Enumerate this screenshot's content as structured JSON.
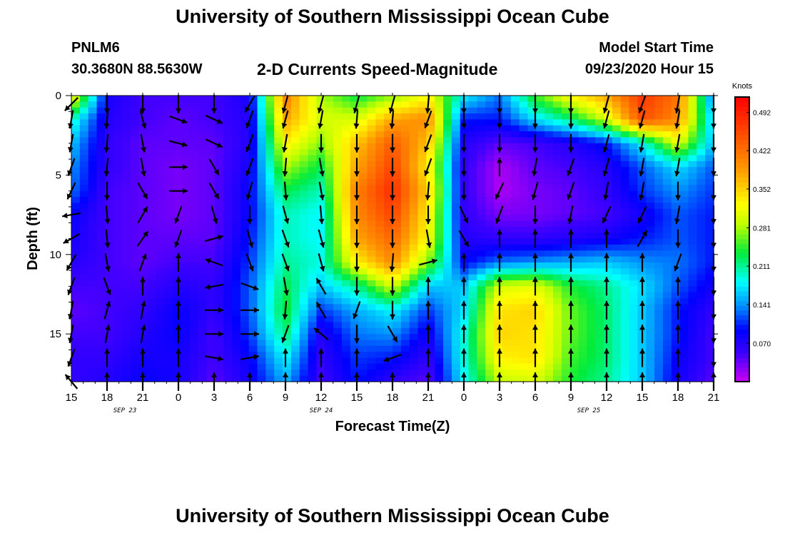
{
  "header": {
    "title": "University of Southern Mississippi Ocean Cube",
    "station_id": "PNLM6",
    "station_coords": "30.3680N 88.5630W",
    "chart_title": "2-D Currents Speed-Magnitude",
    "model_start_label": "Model Start Time",
    "model_start_value": "09/23/2020 Hour 15"
  },
  "footer": {
    "title": "University of Southern Mississippi Ocean Cube"
  },
  "chart_data": {
    "type": "heatmap",
    "title": "2-D Currents Speed-Magnitude",
    "xlabel": "Forecast Time(Z)",
    "ylabel": "Depth (ft)",
    "colorbar_label": "Knots",
    "colorbar_ticks": [
      0.492,
      0.422,
      0.352,
      0.281,
      0.211,
      0.141,
      0.07
    ],
    "colorbar_range": [
      0.0,
      0.52
    ],
    "x_ticks": [
      "15",
      "18",
      "21",
      "0",
      "3",
      "6",
      "9",
      "12",
      "15",
      "18",
      "21",
      "0",
      "3",
      "6",
      "9",
      "12",
      "15",
      "18",
      "21"
    ],
    "date_labels": [
      {
        "text": "SEP 23",
        "hours_from_start": 4.5
      },
      {
        "text": "SEP 24",
        "hours_from_start": 21
      },
      {
        "text": "SEP 25",
        "hours_from_start": 43.5
      }
    ],
    "x_range_hours": [
      0,
      54
    ],
    "y_ticks": [
      0,
      5,
      10,
      15
    ],
    "ylim": [
      0,
      18
    ],
    "grid": false,
    "depths_ft": [
      0,
      1.5,
      3,
      4.5,
      6,
      7.5,
      9,
      10.5,
      12,
      13.5,
      15,
      16.5,
      18
    ],
    "times_hours": [
      0,
      3,
      6,
      9,
      12,
      15,
      18,
      21,
      24,
      27,
      30,
      33,
      36,
      39,
      42,
      45,
      48,
      51,
      54
    ],
    "speed_knots": [
      [
        0.34,
        0.08,
        0.05,
        0.05,
        0.05,
        0.08,
        0.41,
        0.28,
        0.23,
        0.27,
        0.32,
        0.18,
        0.13,
        0.25,
        0.33,
        0.38,
        0.47,
        0.42,
        0.12
      ],
      [
        0.2,
        0.07,
        0.05,
        0.04,
        0.05,
        0.07,
        0.38,
        0.3,
        0.3,
        0.38,
        0.4,
        0.1,
        0.1,
        0.17,
        0.22,
        0.3,
        0.45,
        0.4,
        0.15
      ],
      [
        0.16,
        0.06,
        0.04,
        0.04,
        0.04,
        0.07,
        0.33,
        0.27,
        0.36,
        0.44,
        0.36,
        0.07,
        0.04,
        0.05,
        0.07,
        0.1,
        0.18,
        0.31,
        0.15
      ],
      [
        0.14,
        0.06,
        0.04,
        0.03,
        0.04,
        0.08,
        0.28,
        0.23,
        0.38,
        0.46,
        0.33,
        0.06,
        0.01,
        0.04,
        0.05,
        0.07,
        0.12,
        0.17,
        0.12
      ],
      [
        0.13,
        0.05,
        0.04,
        0.03,
        0.04,
        0.09,
        0.23,
        0.2,
        0.41,
        0.48,
        0.35,
        0.06,
        0.01,
        0.03,
        0.04,
        0.06,
        0.11,
        0.14,
        0.11
      ],
      [
        0.09,
        0.05,
        0.04,
        0.03,
        0.04,
        0.09,
        0.2,
        0.18,
        0.4,
        0.46,
        0.33,
        0.06,
        0.03,
        0.03,
        0.04,
        0.05,
        0.08,
        0.12,
        0.1
      ],
      [
        0.08,
        0.05,
        0.04,
        0.04,
        0.04,
        0.1,
        0.2,
        0.18,
        0.38,
        0.43,
        0.32,
        0.07,
        0.06,
        0.06,
        0.07,
        0.08,
        0.1,
        0.12,
        0.1
      ],
      [
        0.07,
        0.05,
        0.04,
        0.05,
        0.05,
        0.11,
        0.21,
        0.19,
        0.33,
        0.4,
        0.27,
        0.09,
        0.13,
        0.14,
        0.15,
        0.16,
        0.14,
        0.13,
        0.1
      ],
      [
        0.05,
        0.05,
        0.05,
        0.07,
        0.06,
        0.12,
        0.23,
        0.16,
        0.21,
        0.3,
        0.16,
        0.16,
        0.3,
        0.31,
        0.24,
        0.21,
        0.17,
        0.12,
        0.08
      ],
      [
        0.04,
        0.05,
        0.06,
        0.09,
        0.06,
        0.12,
        0.24,
        0.11,
        0.15,
        0.18,
        0.11,
        0.17,
        0.34,
        0.35,
        0.26,
        0.22,
        0.16,
        0.1,
        0.06
      ],
      [
        0.05,
        0.05,
        0.07,
        0.09,
        0.05,
        0.11,
        0.22,
        0.07,
        0.13,
        0.14,
        0.08,
        0.19,
        0.35,
        0.34,
        0.26,
        0.22,
        0.16,
        0.1,
        0.05
      ],
      [
        0.06,
        0.06,
        0.08,
        0.08,
        0.05,
        0.09,
        0.18,
        0.06,
        0.11,
        0.1,
        0.06,
        0.19,
        0.33,
        0.34,
        0.25,
        0.22,
        0.16,
        0.09,
        0.05
      ],
      [
        0.06,
        0.07,
        0.09,
        0.08,
        0.04,
        0.08,
        0.15,
        0.05,
        0.1,
        0.06,
        0.04,
        0.18,
        0.29,
        0.3,
        0.24,
        0.21,
        0.16,
        0.08,
        0.04
      ]
    ],
    "vector_directions_deg": [
      [
        225,
        180,
        180,
        180,
        180,
        210,
        195,
        195,
        195,
        195,
        185,
        180,
        180,
        180,
        180,
        195,
        200,
        190,
        180
      ],
      [
        190,
        185,
        165,
        110,
        115,
        200,
        195,
        190,
        185,
        185,
        200,
        180,
        180,
        180,
        180,
        195,
        195,
        190,
        180
      ],
      [
        190,
        185,
        170,
        105,
        115,
        200,
        190,
        180,
        180,
        180,
        200,
        180,
        180,
        180,
        180,
        195,
        190,
        190,
        180
      ],
      [
        200,
        185,
        170,
        90,
        150,
        200,
        185,
        170,
        180,
        180,
        200,
        180,
        0,
        190,
        200,
        195,
        190,
        190,
        180
      ],
      [
        205,
        180,
        150,
        90,
        150,
        195,
        175,
        170,
        180,
        180,
        185,
        180,
        205,
        195,
        200,
        190,
        190,
        180,
        180
      ],
      [
        260,
        175,
        30,
        200,
        165,
        180,
        165,
        175,
        180,
        180,
        180,
        155,
        200,
        180,
        190,
        205,
        205,
        190,
        180
      ],
      [
        240,
        175,
        35,
        200,
        75,
        165,
        160,
        165,
        180,
        180,
        170,
        150,
        0,
        0,
        0,
        0,
        30,
        180,
        180
      ],
      [
        210,
        170,
        20,
        0,
        290,
        160,
        160,
        165,
        180,
        185,
        75,
        0,
        0,
        0,
        0,
        0,
        0,
        200,
        180
      ],
      [
        200,
        160,
        0,
        0,
        260,
        110,
        170,
        330,
        180,
        180,
        0,
        0,
        0,
        0,
        0,
        0,
        0,
        0,
        180
      ],
      [
        190,
        15,
        10,
        0,
        90,
        90,
        185,
        330,
        200,
        180,
        0,
        0,
        0,
        0,
        0,
        0,
        0,
        0,
        180
      ],
      [
        190,
        10,
        10,
        0,
        90,
        90,
        200,
        310,
        180,
        150,
        0,
        0,
        0,
        0,
        0,
        0,
        0,
        0,
        180
      ],
      [
        200,
        0,
        0,
        0,
        100,
        80,
        0,
        0,
        0,
        250,
        0,
        0,
        0,
        0,
        0,
        0,
        0,
        0,
        180
      ],
      [
        320,
        0,
        0,
        0,
        0,
        0,
        0,
        0,
        0,
        0,
        0,
        0,
        0,
        0,
        0,
        0,
        0,
        0,
        0
      ]
    ]
  }
}
